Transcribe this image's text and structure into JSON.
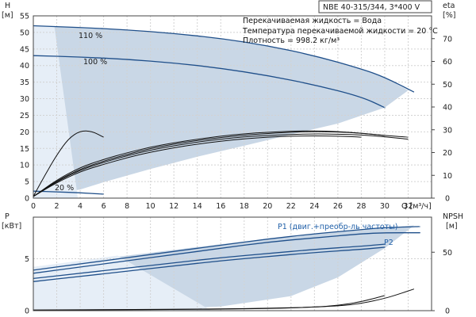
{
  "chart_data": [
    {
      "type": "line",
      "name": "head_and_efficiency",
      "title": "NBE 40-315/344, 3*400 V",
      "info": [
        "Перекачиваемая жидкость = Вода",
        "Температура перекачиваемой жидкости = 20 °C",
        "Плотность = 998.2 кг/м³"
      ],
      "ylabel_left": [
        "H",
        "[м]"
      ],
      "ylabel_right": [
        "eta",
        "[%]"
      ],
      "xlabel": "Q [м³/ч]",
      "xlim": [
        0,
        34
      ],
      "ylim_left": [
        0,
        55
      ],
      "ylim_right": [
        0,
        80
      ],
      "x_ticks": [
        0,
        2,
        4,
        6,
        8,
        10,
        12,
        14,
        16,
        18,
        20,
        22,
        24,
        26,
        28,
        30,
        32
      ],
      "y_ticks_left": [
        0,
        5,
        10,
        15,
        20,
        25,
        30,
        35,
        40,
        45,
        50,
        55
      ],
      "y_ticks_right": [
        0,
        10,
        20,
        30,
        40,
        50,
        60,
        70
      ],
      "grid": true,
      "operating_area": {
        "upper": [
          [
            0,
            52
          ],
          [
            2,
            51.8
          ],
          [
            4,
            51.5
          ],
          [
            6,
            51.2
          ],
          [
            8,
            50.8
          ],
          [
            10,
            50.3
          ],
          [
            12,
            49.7
          ],
          [
            14,
            49
          ],
          [
            16,
            48.2
          ],
          [
            18,
            47.2
          ],
          [
            20,
            46
          ],
          [
            22,
            44.6
          ],
          [
            24,
            43
          ],
          [
            26,
            41.2
          ],
          [
            28,
            39
          ],
          [
            30,
            36.5
          ],
          [
            32,
            32.5
          ]
        ],
        "lower": [
          [
            32,
            32.5
          ],
          [
            30,
            27.3
          ],
          [
            26,
            22.5
          ],
          [
            22,
            19.2
          ],
          [
            18,
            15.8
          ],
          [
            14,
            12.5
          ],
          [
            10,
            8.8
          ],
          [
            6,
            4.8
          ],
          [
            4,
            2.6
          ],
          [
            2,
            1.4
          ],
          [
            1,
            2
          ],
          [
            0,
            2
          ]
        ]
      },
      "series": [
        {
          "name": "110 %",
          "axis": "left",
          "points": [
            [
              0,
              52
            ],
            [
              4,
              51.5
            ],
            [
              8,
              50.8
            ],
            [
              12,
              49.7
            ],
            [
              16,
              48.2
            ],
            [
              20,
              46
            ],
            [
              24,
              43
            ],
            [
              28,
              39
            ],
            [
              30,
              36.5
            ],
            [
              32.5,
              32
            ]
          ]
        },
        {
          "name": "100 %",
          "axis": "left",
          "points": [
            [
              0,
              43
            ],
            [
              4,
              42.6
            ],
            [
              8,
              41.9
            ],
            [
              12,
              40.8
            ],
            [
              16,
              39.2
            ],
            [
              20,
              37
            ],
            [
              24,
              34.2
            ],
            [
              28,
              30.6
            ],
            [
              30,
              27.3
            ]
          ]
        },
        {
          "name": "20 %",
          "axis": "left",
          "points": [
            [
              0,
              2.1
            ],
            [
              2,
              1.9
            ],
            [
              4,
              1.6
            ],
            [
              6,
              1.2
            ]
          ]
        },
        {
          "axis": "left",
          "points": [
            [
              0,
              0.5
            ],
            [
              1,
              7
            ],
            [
              2,
              13
            ],
            [
              3,
              18
            ],
            [
              4,
              20.3
            ],
            [
              5,
              20.2
            ],
            [
              6,
              18.4
            ]
          ]
        },
        {
          "axis": "left",
          "points": [
            [
              0,
              0.5
            ],
            [
              2,
              5
            ],
            [
              4,
              8.5
            ],
            [
              6,
              10.8
            ],
            [
              8,
              12.8
            ],
            [
              10,
              14.5
            ],
            [
              12,
              15.8
            ],
            [
              14,
              16.9
            ],
            [
              16,
              17.8
            ],
            [
              18,
              18.5
            ],
            [
              20,
              18.9
            ],
            [
              22,
              19.2
            ],
            [
              24,
              19.4
            ],
            [
              26,
              19.3
            ],
            [
              28,
              19.1
            ],
            [
              30,
              18.5
            ],
            [
              32,
              17.8
            ]
          ]
        },
        {
          "axis": "left",
          "points": [
            [
              0,
              0.5
            ],
            [
              2,
              5.5
            ],
            [
              4,
              9.3
            ],
            [
              6,
              11.7
            ],
            [
              8,
              13.7
            ],
            [
              10,
              15.4
            ],
            [
              12,
              16.7
            ],
            [
              14,
              17.8
            ],
            [
              16,
              18.7
            ],
            [
              18,
              19.4
            ],
            [
              20,
              19.9
            ],
            [
              22,
              20.2
            ],
            [
              24,
              20.3
            ],
            [
              26,
              20.1
            ],
            [
              28,
              19.6
            ],
            [
              30,
              18.9
            ]
          ]
        },
        {
          "axis": "left",
          "points": [
            [
              0,
              0.5
            ],
            [
              2,
              4.7
            ],
            [
              4,
              8
            ],
            [
              6,
              10.2
            ],
            [
              8,
              12.2
            ],
            [
              10,
              13.9
            ],
            [
              12,
              15.2
            ],
            [
              14,
              16.3
            ],
            [
              16,
              17.2
            ],
            [
              18,
              17.9
            ],
            [
              20,
              18.4
            ],
            [
              22,
              18.7
            ],
            [
              24,
              18.8
            ],
            [
              26,
              18.7
            ],
            [
              28,
              18.4
            ]
          ]
        },
        {
          "axis": "left",
          "points": [
            [
              0,
              0.5
            ],
            [
              2,
              5.2
            ],
            [
              4,
              8.8
            ],
            [
              6,
              11.2
            ],
            [
              8,
              13.2
            ],
            [
              10,
              15
            ],
            [
              12,
              16.3
            ],
            [
              14,
              17.4
            ],
            [
              16,
              18.3
            ],
            [
              18,
              19
            ],
            [
              20,
              19.5
            ],
            [
              22,
              19.9
            ],
            [
              24,
              20.1
            ],
            [
              26,
              20
            ],
            [
              28,
              19.6
            ],
            [
              30,
              18.9
            ],
            [
              32,
              18.4
            ]
          ]
        }
      ]
    },
    {
      "type": "line",
      "name": "power_and_npsh",
      "ylabel_left": [
        "P",
        "[кВт]"
      ],
      "ylabel_right": [
        "NPSH",
        "[м]"
      ],
      "xlim": [
        0,
        34
      ],
      "ylim_left": [
        0,
        9
      ],
      "ylim_right": [
        0,
        80
      ],
      "y_ticks_left": [
        0,
        5
      ],
      "y_ticks_right": [
        0,
        50
      ],
      "grid": true,
      "operating_area": {
        "upper": [
          [
            0,
            4.2
          ],
          [
            8,
            5.3
          ],
          [
            16,
            6.4
          ],
          [
            24,
            7.4
          ],
          [
            32.5,
            8.2
          ]
        ],
        "lower": [
          [
            32.5,
            8.2
          ],
          [
            30,
            6
          ],
          [
            26,
            3.2
          ],
          [
            22,
            1.4
          ],
          [
            16,
            0.4
          ],
          [
            10,
            0.1
          ],
          [
            0,
            0.1
          ]
        ]
      },
      "series": [
        {
          "name": "P1 (двиг.+преобр-ль частоты)",
          "axis": "left",
          "points": [
            [
              0,
              3.9
            ],
            [
              4,
              4.5
            ],
            [
              8,
              5.1
            ],
            [
              12,
              5.7
            ],
            [
              16,
              6.3
            ],
            [
              20,
              6.9
            ],
            [
              24,
              7.4
            ],
            [
              28,
              7.8
            ],
            [
              30,
              8
            ],
            [
              33,
              8.1
            ]
          ]
        },
        {
          "name": "P2",
          "axis": "left",
          "points": [
            [
              0,
              3.6
            ],
            [
              4,
              4.2
            ],
            [
              8,
              4.8
            ],
            [
              12,
              5.4
            ],
            [
              16,
              6
            ],
            [
              20,
              6.6
            ],
            [
              24,
              7
            ],
            [
              28,
              7.4
            ],
            [
              30,
              7.5
            ],
            [
              33,
              7.5
            ]
          ]
        },
        {
          "axis": "left",
          "points": [
            [
              0,
              3.1
            ],
            [
              4,
              3.6
            ],
            [
              8,
              4.1
            ],
            [
              12,
              4.6
            ],
            [
              16,
              5.1
            ],
            [
              20,
              5.5
            ],
            [
              24,
              5.9
            ],
            [
              28,
              6.2
            ],
            [
              30,
              6.4
            ]
          ]
        },
        {
          "axis": "left",
          "points": [
            [
              0,
              2.8
            ],
            [
              4,
              3.3
            ],
            [
              8,
              3.8
            ],
            [
              12,
              4.3
            ],
            [
              16,
              4.8
            ],
            [
              20,
              5.2
            ],
            [
              24,
              5.6
            ],
            [
              28,
              5.9
            ],
            [
              30,
              6.1
            ]
          ]
        },
        {
          "axis": "right",
          "points": [
            [
              0,
              0.5
            ],
            [
              4,
              0.8
            ],
            [
              8,
              1
            ],
            [
              12,
              1.2
            ],
            [
              16,
              1.5
            ],
            [
              20,
              2
            ],
            [
              24,
              3
            ],
            [
              26,
              4.5
            ],
            [
              28,
              7.5
            ],
            [
              30,
              13
            ]
          ]
        },
        {
          "axis": "right",
          "points": [
            [
              0,
              0.5
            ],
            [
              6,
              0.7
            ],
            [
              12,
              1
            ],
            [
              18,
              1.5
            ],
            [
              22,
              2.3
            ],
            [
              26,
              4
            ],
            [
              28,
              6
            ],
            [
              30,
              10.5
            ],
            [
              31,
              13.5
            ],
            [
              32.5,
              18.5
            ]
          ]
        }
      ]
    }
  ]
}
